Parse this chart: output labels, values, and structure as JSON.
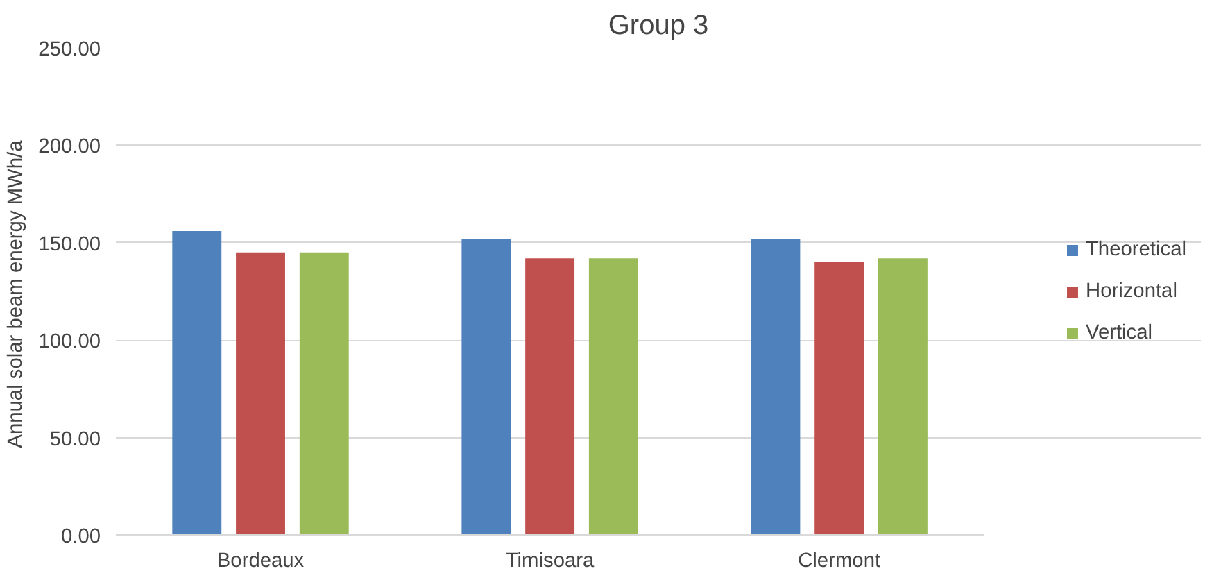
{
  "chart_data": {
    "type": "bar",
    "title": "Group 3",
    "ylabel": "Annual solar beam energy  MWh/a",
    "categories": [
      "Bordeaux",
      "Timisoara",
      "Clermont"
    ],
    "series": [
      {
        "name": "Theoretical",
        "color": "#4f81bd",
        "values": [
          156,
          152,
          152
        ]
      },
      {
        "name": "Horizontal",
        "color": "#c0504d",
        "values": [
          145,
          142,
          140
        ]
      },
      {
        "name": "Vertical",
        "color": "#9bbb59",
        "values": [
          145,
          142,
          142
        ]
      }
    ],
    "ylim": [
      0,
      250
    ],
    "yticks": [
      {
        "value": 0,
        "label": "0.00"
      },
      {
        "value": 50,
        "label": "50.00"
      },
      {
        "value": 100,
        "label": "100.00"
      },
      {
        "value": 150,
        "label": "150.00"
      },
      {
        "value": 200,
        "label": "200.00"
      },
      {
        "value": 250,
        "label": "250.00"
      }
    ],
    "grid": "y",
    "legend": "right"
  }
}
